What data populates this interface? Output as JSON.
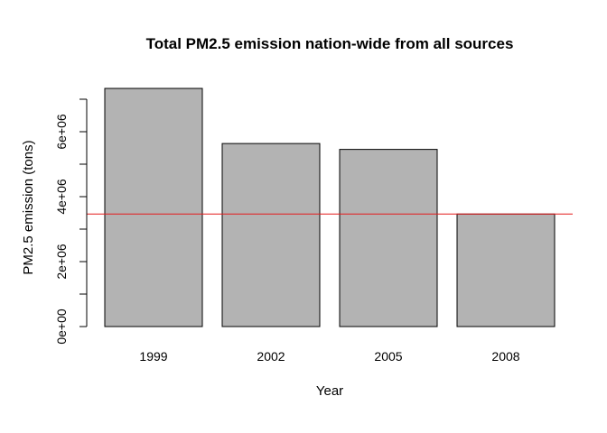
{
  "chart_data": {
    "type": "bar",
    "title": "Total PM2.5 emission nation-wide from all sources",
    "xlabel": "Year",
    "ylabel": "PM2.5 emission (tons)",
    "categories": [
      "1999",
      "2002",
      "2005",
      "2008"
    ],
    "values": [
      7332967,
      5635780,
      5454703,
      3464206
    ],
    "ylim": [
      0,
      7000000
    ],
    "yticks": [
      0,
      2000000,
      4000000,
      6000000
    ],
    "ytick_labels": [
      "0e+00",
      "2e+06",
      "4e+06",
      "6e+06"
    ],
    "yminor_ticks": [
      1000000,
      3000000,
      5000000,
      7000000
    ],
    "reference_line": {
      "value": 3464206,
      "color": "#e41a1c"
    },
    "bar_fill": "#b3b3b3",
    "bar_stroke": "#000000",
    "grid": false,
    "legend": "none"
  }
}
